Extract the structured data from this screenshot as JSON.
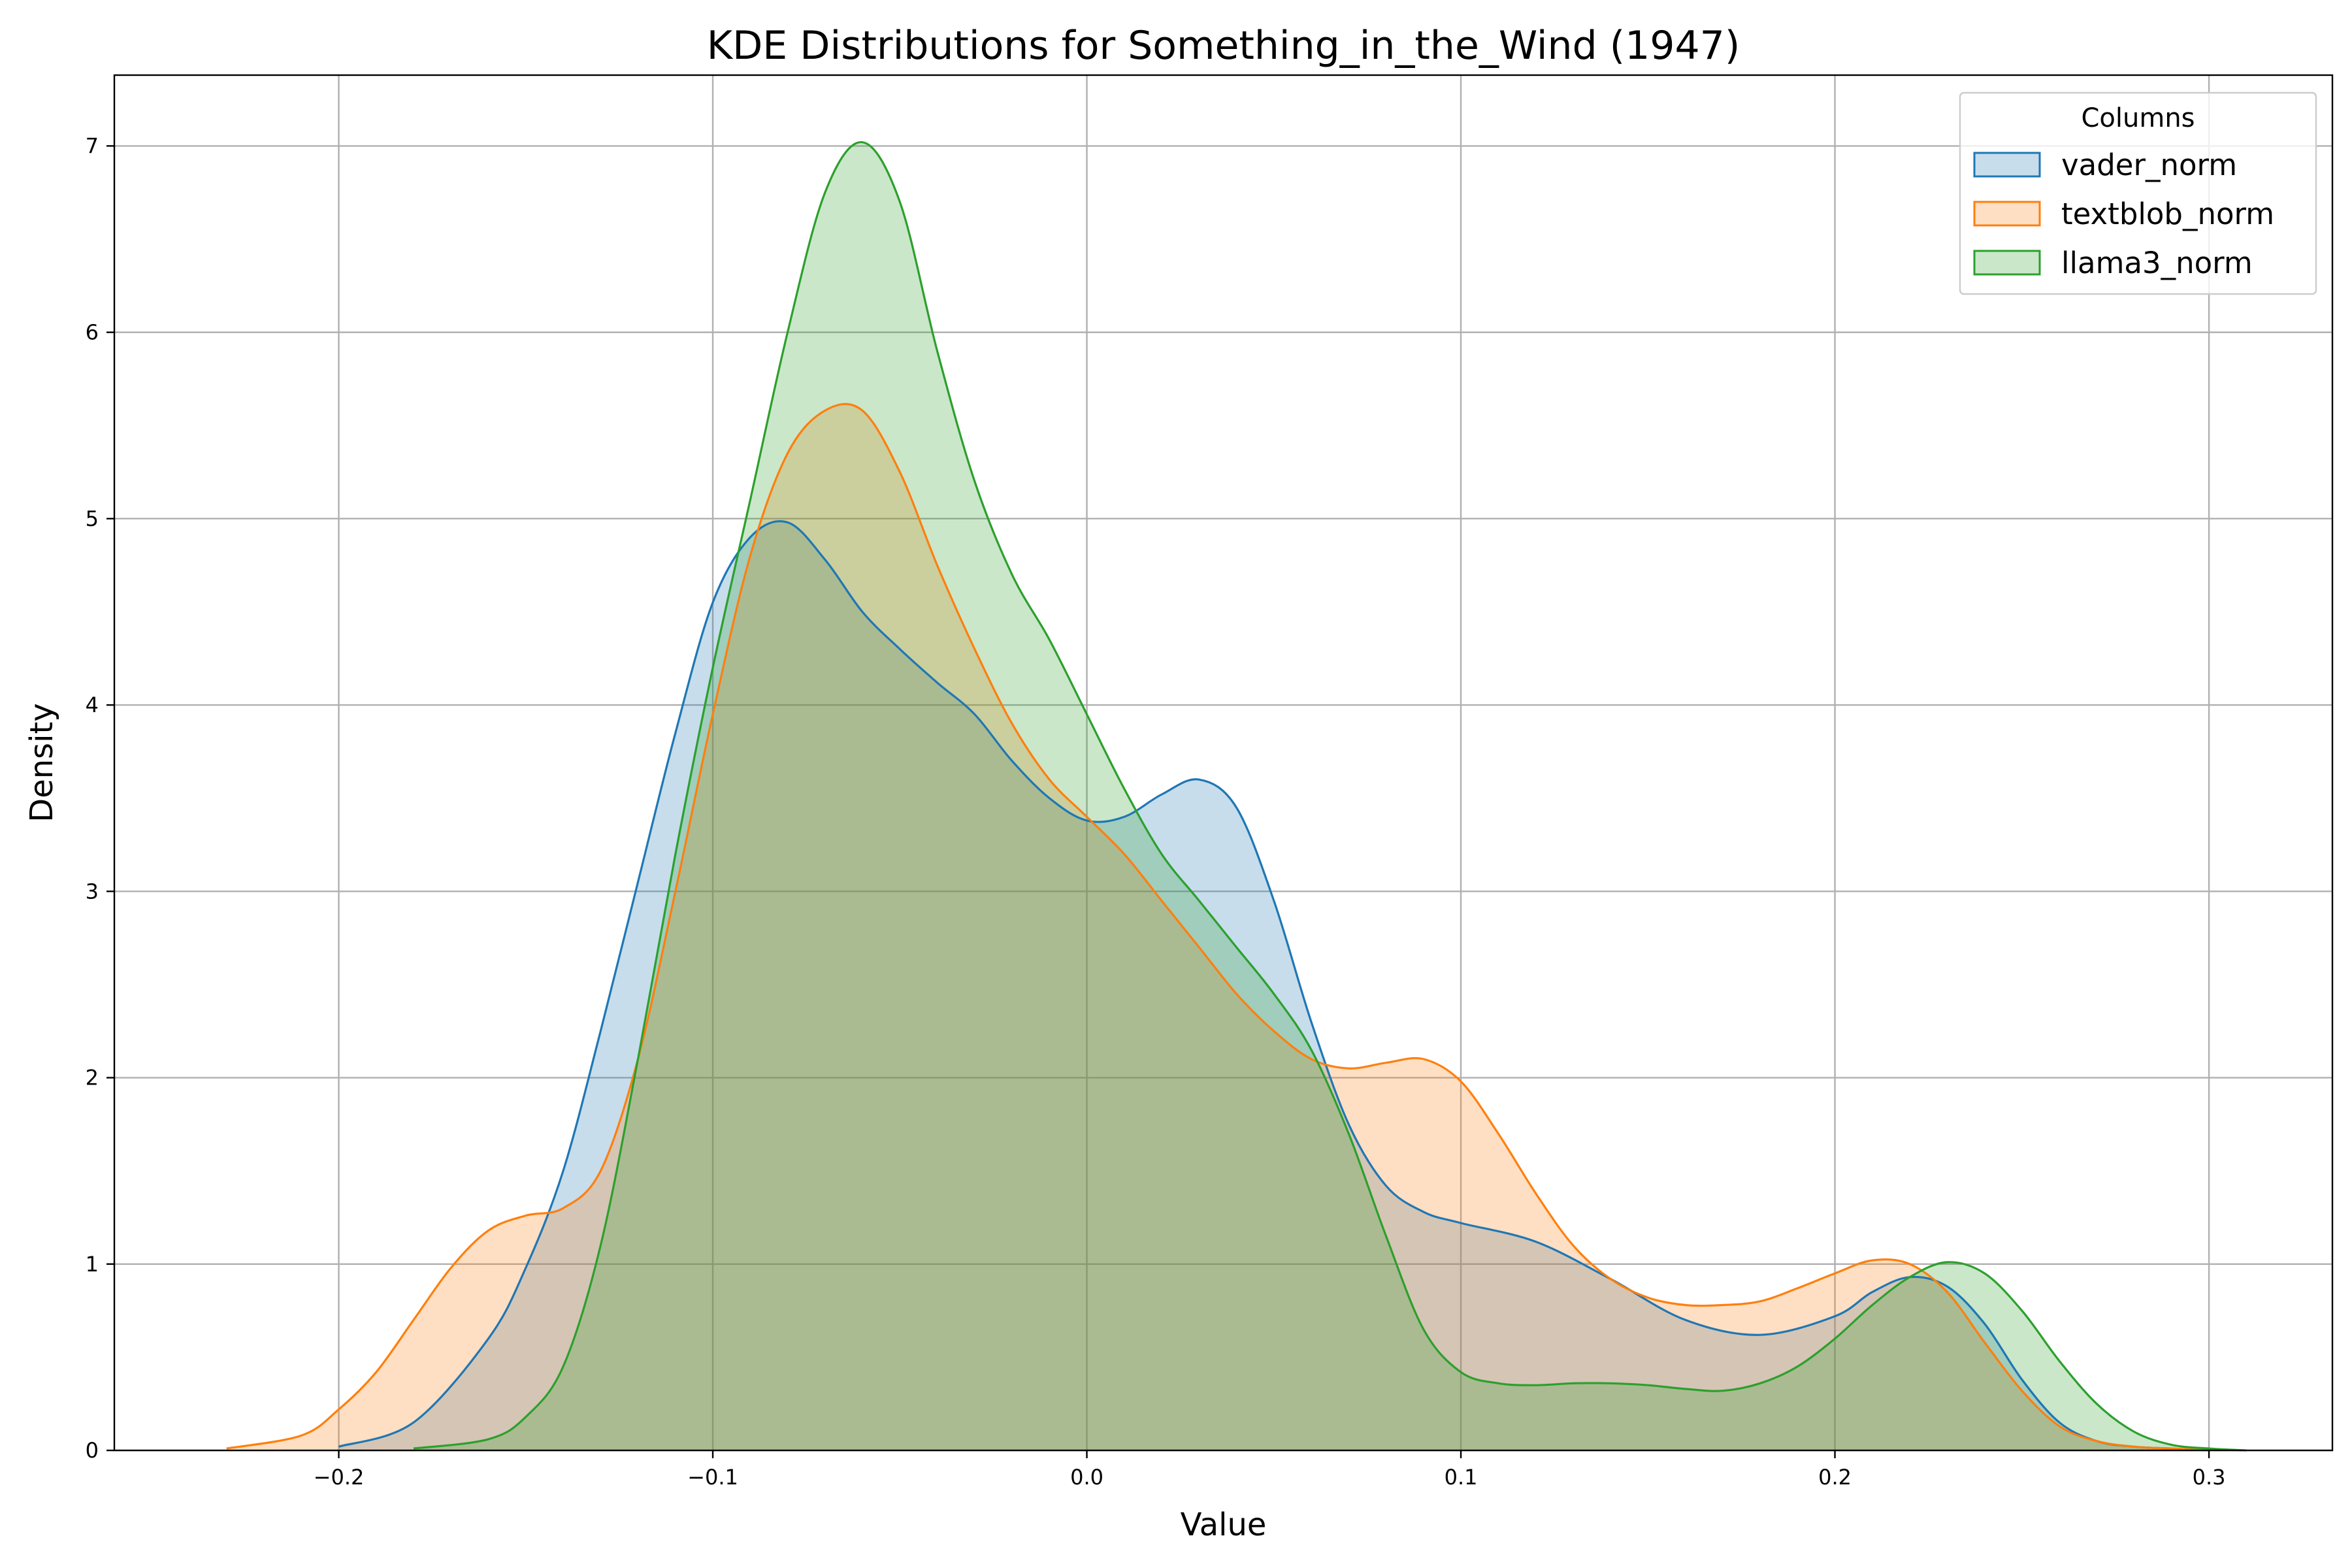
{
  "chart_data": {
    "type": "area",
    "title": "KDE Distributions for Something_in_the_Wind (1947)",
    "xlabel": "Value",
    "ylabel": "Density",
    "xlim": [
      -0.26,
      0.333
    ],
    "ylim": [
      0,
      7.38
    ],
    "xticks": [
      -0.2,
      -0.1,
      0.0,
      0.1,
      0.2,
      0.3
    ],
    "xtick_labels": [
      "−0.2",
      "−0.1",
      "0.0",
      "0.1",
      "0.2",
      "0.3"
    ],
    "yticks": [
      0,
      1,
      2,
      3,
      4,
      5,
      6,
      7
    ],
    "ytick_labels": [
      "0",
      "1",
      "2",
      "3",
      "4",
      "5",
      "6",
      "7"
    ],
    "grid": true,
    "legend": {
      "title": "Columns",
      "placement": "top-right"
    },
    "series": [
      {
        "name": "vader_norm",
        "color": "#1f77b4",
        "x": [
          -0.2,
          -0.18,
          -0.16,
          -0.15,
          -0.14,
          -0.13,
          -0.12,
          -0.11,
          -0.1,
          -0.09,
          -0.08,
          -0.07,
          -0.06,
          -0.05,
          -0.04,
          -0.03,
          -0.02,
          -0.01,
          0.0,
          0.01,
          0.02,
          0.03,
          0.04,
          0.05,
          0.06,
          0.07,
          0.08,
          0.09,
          0.1,
          0.12,
          0.14,
          0.16,
          0.18,
          0.2,
          0.21,
          0.22,
          0.23,
          0.24,
          0.25,
          0.26,
          0.27,
          0.28,
          0.29,
          0.3
        ],
        "y": [
          0.02,
          0.15,
          0.6,
          0.98,
          1.5,
          2.25,
          3.05,
          3.85,
          4.55,
          4.9,
          4.98,
          4.78,
          4.5,
          4.3,
          4.12,
          3.95,
          3.7,
          3.5,
          3.38,
          3.4,
          3.52,
          3.6,
          3.45,
          2.95,
          2.3,
          1.75,
          1.42,
          1.28,
          1.22,
          1.12,
          0.92,
          0.7,
          0.62,
          0.72,
          0.85,
          0.93,
          0.88,
          0.68,
          0.38,
          0.15,
          0.05,
          0.02,
          0.01,
          0.0
        ]
      },
      {
        "name": "textblob_norm",
        "color": "#ff7f0e",
        "x": [
          -0.23,
          -0.21,
          -0.2,
          -0.19,
          -0.18,
          -0.17,
          -0.16,
          -0.15,
          -0.14,
          -0.13,
          -0.12,
          -0.11,
          -0.1,
          -0.09,
          -0.08,
          -0.07,
          -0.06,
          -0.05,
          -0.04,
          -0.03,
          -0.02,
          -0.01,
          0.0,
          0.01,
          0.02,
          0.03,
          0.04,
          0.05,
          0.06,
          0.07,
          0.08,
          0.09,
          0.1,
          0.11,
          0.12,
          0.13,
          0.14,
          0.15,
          0.16,
          0.17,
          0.18,
          0.19,
          0.2,
          0.21,
          0.22,
          0.23,
          0.24,
          0.25,
          0.26,
          0.27,
          0.28,
          0.29,
          0.3
        ],
        "y": [
          0.01,
          0.08,
          0.22,
          0.42,
          0.7,
          0.98,
          1.18,
          1.26,
          1.3,
          1.5,
          2.1,
          3.0,
          3.95,
          4.8,
          5.35,
          5.58,
          5.58,
          5.25,
          4.75,
          4.3,
          3.9,
          3.6,
          3.4,
          3.2,
          2.95,
          2.7,
          2.45,
          2.25,
          2.1,
          2.05,
          2.08,
          2.1,
          1.98,
          1.7,
          1.38,
          1.1,
          0.92,
          0.82,
          0.78,
          0.78,
          0.8,
          0.87,
          0.95,
          1.02,
          1.0,
          0.85,
          0.58,
          0.32,
          0.13,
          0.05,
          0.02,
          0.01,
          0.0
        ]
      },
      {
        "name": "llama3_norm",
        "color": "#2ca02c",
        "x": [
          -0.18,
          -0.16,
          -0.15,
          -0.14,
          -0.13,
          -0.12,
          -0.11,
          -0.1,
          -0.09,
          -0.08,
          -0.07,
          -0.06,
          -0.05,
          -0.04,
          -0.03,
          -0.02,
          -0.01,
          0.0,
          0.01,
          0.02,
          0.03,
          0.04,
          0.05,
          0.06,
          0.07,
          0.08,
          0.09,
          0.1,
          0.11,
          0.12,
          0.13,
          0.14,
          0.15,
          0.16,
          0.17,
          0.18,
          0.19,
          0.2,
          0.21,
          0.22,
          0.23,
          0.24,
          0.25,
          0.26,
          0.27,
          0.28,
          0.29,
          0.3,
          0.31
        ],
        "y": [
          0.01,
          0.06,
          0.18,
          0.45,
          1.1,
          2.1,
          3.2,
          4.2,
          5.1,
          6.0,
          6.75,
          7.02,
          6.7,
          5.9,
          5.2,
          4.7,
          4.35,
          3.95,
          3.55,
          3.2,
          2.95,
          2.7,
          2.45,
          2.15,
          1.7,
          1.15,
          0.65,
          0.42,
          0.36,
          0.35,
          0.36,
          0.36,
          0.35,
          0.33,
          0.32,
          0.36,
          0.45,
          0.6,
          0.78,
          0.93,
          1.01,
          0.95,
          0.75,
          0.48,
          0.25,
          0.1,
          0.03,
          0.01,
          0.0
        ]
      }
    ]
  }
}
